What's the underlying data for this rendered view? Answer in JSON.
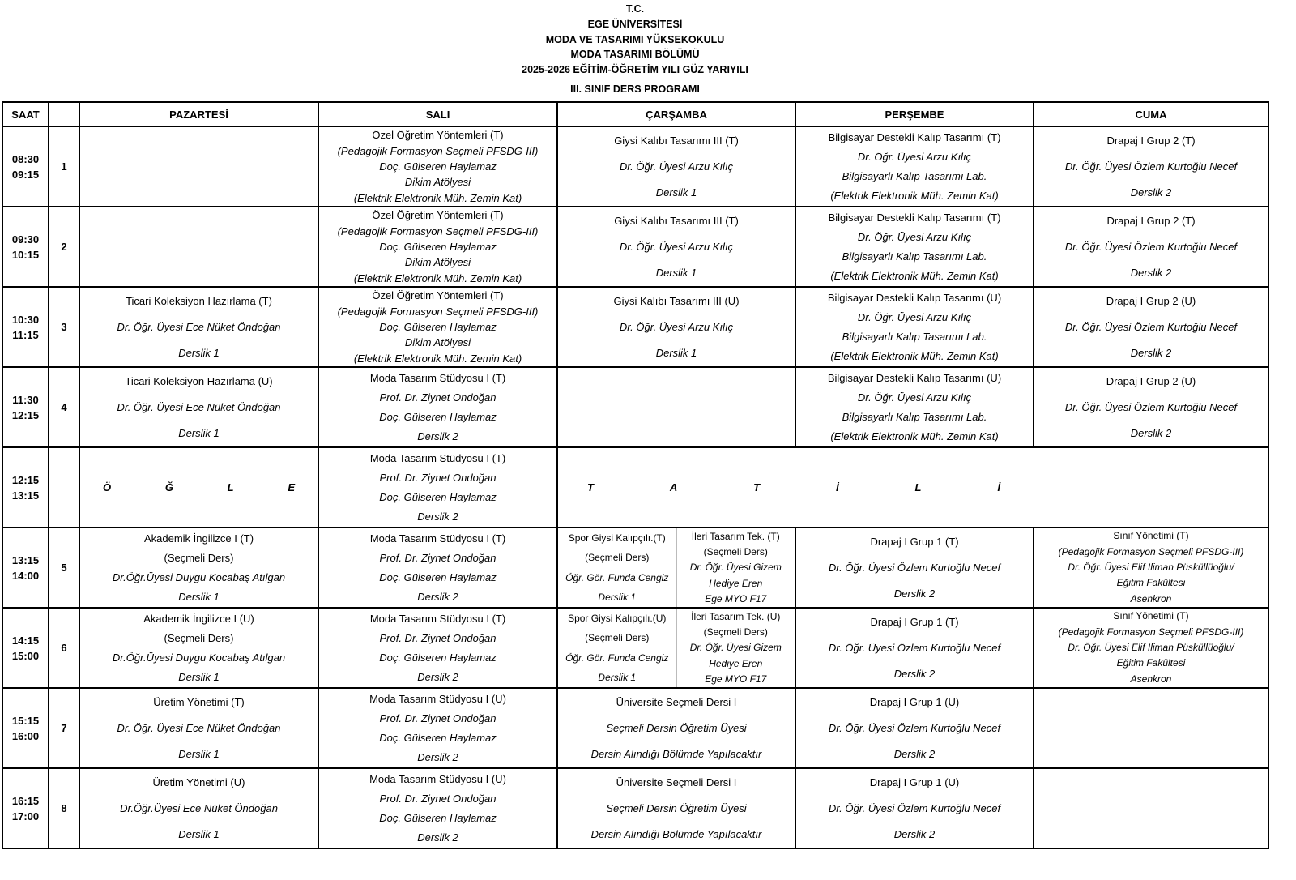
{
  "header": {
    "lines": [
      "T.C.",
      "EGE ÜNİVERSİTESİ",
      "MODA VE TASARIMI YÜKSEKOKULU",
      "MODA TASARIMI BÖLÜMÜ",
      "2025-2026 EĞİTİM-ÖĞRETİM YILI GÜZ YARIYILI"
    ],
    "program": "III. SINIF DERS PROGRAMI"
  },
  "columns": [
    "SAAT",
    "",
    "PAZARTESİ",
    "SALI",
    "ÇARŞAMBA",
    "PERŞEMBE",
    "CUMA"
  ],
  "rows": [
    {
      "time": [
        "08:30",
        "09:15"
      ],
      "num": "1",
      "cells": [
        [],
        [
          {
            "t": "Özel Öğretim Yöntemleri (T)"
          },
          {
            "t": "(Pedagojik Formasyon Seçmeli PFSDG-III)",
            "i": true
          },
          {
            "t": "Doç. Gülseren Haylamaz",
            "i": true
          },
          {
            "t": "Dikim Atölyesi",
            "i": true
          },
          {
            "t": "(Elektrik Elektronik Müh. Zemin Kat)",
            "i": true
          }
        ],
        [
          {
            "t": "Giysi Kalıbı Tasarımı III (T)"
          },
          {
            "t": "Dr. Öğr. Üyesi Arzu Kılıç",
            "i": true
          },
          {
            "t": "Derslik 1",
            "i": true
          }
        ],
        [
          {
            "t": "Bilgisayar Destekli Kalıp Tasarımı (T)"
          },
          {
            "t": "Dr. Öğr. Üyesi Arzu Kılıç",
            "i": true
          },
          {
            "t": "Bilgisayarlı Kalıp Tasarımı Lab.",
            "i": true
          },
          {
            "t": "(Elektrik Elektronik Müh. Zemin Kat)",
            "i": true
          }
        ],
        [
          {
            "t": "Drapaj I Grup 2 (T)"
          },
          {
            "t": "Dr. Öğr. Üyesi Özlem Kurtoğlu Necef",
            "i": true
          },
          {
            "t": "Derslik 2",
            "i": true
          }
        ]
      ]
    },
    {
      "time": [
        "09:30",
        "10:15"
      ],
      "num": "2",
      "cells": [
        [],
        [
          {
            "t": "Özel Öğretim Yöntemleri (T)"
          },
          {
            "t": "(Pedagojik Formasyon Seçmeli PFSDG-III)",
            "i": true
          },
          {
            "t": "Doç. Gülseren Haylamaz",
            "i": true
          },
          {
            "t": "Dikim Atölyesi",
            "i": true
          },
          {
            "t": "(Elektrik Elektronik Müh. Zemin Kat)",
            "i": true
          }
        ],
        [
          {
            "t": "Giysi Kalıbı Tasarımı III (T)"
          },
          {
            "t": "Dr. Öğr. Üyesi Arzu Kılıç",
            "i": true
          },
          {
            "t": "Derslik 1",
            "i": true
          }
        ],
        [
          {
            "t": "Bilgisayar Destekli Kalıp Tasarımı (T)"
          },
          {
            "t": "Dr. Öğr. Üyesi Arzu Kılıç",
            "i": true
          },
          {
            "t": "Bilgisayarlı Kalıp Tasarımı Lab.",
            "i": true
          },
          {
            "t": "(Elektrik Elektronik Müh. Zemin Kat)",
            "i": true
          }
        ],
        [
          {
            "t": "Drapaj I Grup 2 (T)"
          },
          {
            "t": "Dr. Öğr. Üyesi Özlem Kurtoğlu Necef",
            "i": true
          },
          {
            "t": "Derslik 2",
            "i": true
          }
        ]
      ]
    },
    {
      "time": [
        "10:30",
        "11:15"
      ],
      "num": "3",
      "cells": [
        [
          {
            "t": "Ticari Koleksiyon Hazırlama (T)"
          },
          {
            "t": "Dr. Öğr. Üyesi Ece Nüket Öndoğan",
            "i": true
          },
          {
            "t": "Derslik 1",
            "i": true
          }
        ],
        [
          {
            "t": "Özel Öğretim Yöntemleri (T)"
          },
          {
            "t": "(Pedagojik Formasyon Seçmeli PFSDG-III)",
            "i": true
          },
          {
            "t": "Doç. Gülseren Haylamaz",
            "i": true
          },
          {
            "t": "Dikim Atölyesi",
            "i": true
          },
          {
            "t": "(Elektrik Elektronik Müh. Zemin Kat)",
            "i": true
          }
        ],
        [
          {
            "t": "Giysi Kalıbı Tasarımı III (U)"
          },
          {
            "t": "Dr. Öğr. Üyesi Arzu Kılıç",
            "i": true
          },
          {
            "t": "Derslik 1",
            "i": true
          }
        ],
        [
          {
            "t": "Bilgisayar Destekli Kalıp Tasarımı (U)"
          },
          {
            "t": "Dr. Öğr. Üyesi Arzu Kılıç",
            "i": true
          },
          {
            "t": "Bilgisayarlı Kalıp Tasarımı Lab.",
            "i": true
          },
          {
            "t": "(Elektrik Elektronik Müh. Zemin Kat)",
            "i": true
          }
        ],
        [
          {
            "t": "Drapaj I Grup 2 (U)"
          },
          {
            "t": "Dr. Öğr. Üyesi Özlem Kurtoğlu Necef",
            "i": true
          },
          {
            "t": "Derslik 2",
            "i": true
          }
        ]
      ]
    },
    {
      "time": [
        "11:30",
        "12:15"
      ],
      "num": "4",
      "cells": [
        [
          {
            "t": "Ticari Koleksiyon Hazırlama (U)"
          },
          {
            "t": "Dr. Öğr. Üyesi Ece Nüket Öndoğan",
            "i": true
          },
          {
            "t": "Derslik 1",
            "i": true
          }
        ],
        [
          {
            "t": "Moda Tasarım Stüdyosu I (T)"
          },
          {
            "t": "Prof. Dr. Ziynet Ondoğan",
            "i": true
          },
          {
            "t": "Doç. Gülseren Haylamaz",
            "i": true
          },
          {
            "t": "Derslik 2",
            "i": true
          }
        ],
        [],
        [
          {
            "t": "Bilgisayar Destekli Kalıp Tasarımı (U)"
          },
          {
            "t": "Dr. Öğr. Üyesi Arzu Kılıç",
            "i": true
          },
          {
            "t": "Bilgisayarlı Kalıp Tasarımı Lab.",
            "i": true
          },
          {
            "t": "(Elektrik Elektronik Müh. Zemin Kat)",
            "i": true
          }
        ],
        [
          {
            "t": "Drapaj I Grup 2 (U)"
          },
          {
            "t": "Dr. Öğr. Üyesi Özlem Kurtoğlu Necef",
            "i": true
          },
          {
            "t": "Derslik 2",
            "i": true
          }
        ]
      ]
    },
    {
      "time": [
        "12:15",
        "13:15"
      ],
      "num": "",
      "lunch": {
        "left": [
          "Ö",
          "Ğ",
          "L",
          "E"
        ],
        "right": [
          "T",
          "A",
          "T",
          "İ",
          "L",
          "İ"
        ]
      },
      "cells": [
        [],
        [
          {
            "t": "Moda Tasarım Stüdyosu I (T)"
          },
          {
            "t": "Prof. Dr. Ziynet Ondoğan",
            "i": true
          },
          {
            "t": "Doç. Gülseren Haylamaz",
            "i": true
          },
          {
            "t": "Derslik 2",
            "i": true
          }
        ]
      ]
    },
    {
      "time": [
        "13:15",
        "14:00"
      ],
      "num": "5",
      "cells": [
        [
          {
            "t": "Akademik İngilizce I (T)"
          },
          {
            "t": "(Seçmeli Ders)"
          },
          {
            "t": "Dr.Öğr.Üyesi Duygu Kocabaş Atılgan",
            "i": true
          },
          {
            "t": "Derslik 1",
            "i": true
          }
        ],
        [
          {
            "t": "Moda Tasarım Stüdyosu I (T)"
          },
          {
            "t": "Prof. Dr. Ziynet Ondoğan",
            "i": true
          },
          {
            "t": "Doç. Gülseren Haylamaz",
            "i": true
          },
          {
            "t": "Derslik 2",
            "i": true
          }
        ],
        {
          "split": [
            [
              {
                "t": "Spor Giysi Kalıpçılı.(T)"
              },
              {
                "t": "(Seçmeli Ders)"
              },
              {
                "t": "Öğr. Gör. Funda Cengiz",
                "i": true
              },
              {
                "t": "Derslik 1",
                "i": true
              }
            ],
            [
              {
                "t": "İleri Tasarım Tek. (T)"
              },
              {
                "t": "(Seçmeli Ders)"
              },
              {
                "t": "Dr. Öğr. Üyesi Gizem",
                "i": true
              },
              {
                "t": "Hediye Eren",
                "i": true
              },
              {
                "t": "Ege MYO F17",
                "i": true
              }
            ]
          ]
        },
        [
          {
            "t": "Drapaj I Grup 1  (T)"
          },
          {
            "t": "Dr. Öğr. Üyesi Özlem Kurtoğlu Necef",
            "i": true
          },
          {
            "t": "Derslik 2",
            "i": true
          }
        ],
        {
          "small": true,
          "lines": [
            {
              "t": "Sınıf Yönetimi (T)"
            },
            {
              "t": "(Pedagojik Formasyon Seçmeli PFSDG-III)",
              "i": true
            },
            {
              "t": "Dr. Öğr. Üyesi Elif Iliman Püsküllüoğlu/",
              "i": true
            },
            {
              "t": "Eğitim Fakültesi",
              "i": true
            },
            {
              "t": "Asenkron",
              "i": true
            }
          ]
        }
      ]
    },
    {
      "time": [
        "14:15",
        "15:00"
      ],
      "num": "6",
      "cells": [
        [
          {
            "t": "Akademik İngilizce I (U)"
          },
          {
            "t": "(Seçmeli Ders)"
          },
          {
            "t": "Dr.Öğr.Üyesi Duygu Kocabaş Atılgan",
            "i": true
          },
          {
            "t": "Derslik 1",
            "i": true
          }
        ],
        [
          {
            "t": "Moda Tasarım Stüdyosu I (T)"
          },
          {
            "t": "Prof. Dr. Ziynet Ondoğan",
            "i": true
          },
          {
            "t": "Doç. Gülseren Haylamaz",
            "i": true
          },
          {
            "t": "Derslik 2",
            "i": true
          }
        ],
        {
          "split": [
            [
              {
                "t": "Spor Giysi Kalıpçılı.(U)"
              },
              {
                "t": "(Seçmeli Ders)"
              },
              {
                "t": "Öğr. Gör. Funda Cengiz",
                "i": true
              },
              {
                "t": "Derslik 1",
                "i": true
              }
            ],
            [
              {
                "t": "İleri Tasarım Tek. (U)"
              },
              {
                "t": "(Seçmeli Ders)"
              },
              {
                "t": "Dr. Öğr. Üyesi Gizem",
                "i": true
              },
              {
                "t": "Hediye Eren",
                "i": true
              },
              {
                "t": "Ege MYO F17",
                "i": true
              }
            ]
          ]
        },
        [
          {
            "t": "Drapaj I Grup 1  (T)"
          },
          {
            "t": "Dr. Öğr. Üyesi Özlem Kurtoğlu Necef",
            "i": true
          },
          {
            "t": "Derslik 2",
            "i": true
          }
        ],
        {
          "small": true,
          "lines": [
            {
              "t": "Sınıf Yönetimi (T)"
            },
            {
              "t": "(Pedagojik Formasyon Seçmeli PFSDG-III)",
              "i": true
            },
            {
              "t": "Dr. Öğr. Üyesi Elif Iliman Püsküllüoğlu/",
              "i": true
            },
            {
              "t": "Eğitim Fakültesi",
              "i": true
            },
            {
              "t": "Asenkron",
              "i": true
            }
          ]
        }
      ]
    },
    {
      "time": [
        "15:15",
        "16:00"
      ],
      "num": "7",
      "cells": [
        [
          {
            "t": "Üretim Yönetimi (T)"
          },
          {
            "t": "Dr. Öğr. Üyesi Ece Nüket Öndoğan",
            "i": true
          },
          {
            "t": "Derslik 1",
            "i": true
          }
        ],
        [
          {
            "t": "Moda Tasarım Stüdyosu I (U)"
          },
          {
            "t": "Prof. Dr. Ziynet Ondoğan",
            "i": true
          },
          {
            "t": "Doç. Gülseren Haylamaz",
            "i": true
          },
          {
            "t": "Derslik 2",
            "i": true
          }
        ],
        [
          {
            "t": "Üniversite Seçmeli Dersi I"
          },
          {
            "t": "Seçmeli Dersin Öğretim Üyesi",
            "i": true
          },
          {
            "t": "Dersin Alındığı Bölümde Yapılacaktır",
            "i": true
          }
        ],
        [
          {
            "t": "Drapaj I Grup 1  (U)"
          },
          {
            "t": "Dr. Öğr. Üyesi Özlem Kurtoğlu Necef",
            "i": true
          },
          {
            "t": "Derslik 2",
            "i": true
          }
        ],
        []
      ]
    },
    {
      "time": [
        "16:15",
        "17:00"
      ],
      "num": "8",
      "cells": [
        [
          {
            "t": "Üretim Yönetimi (U)"
          },
          {
            "t": "Dr.Öğr.Üyesi Ece Nüket Öndoğan",
            "i": true
          },
          {
            "t": "Derslik 1",
            "i": true
          }
        ],
        [
          {
            "t": "Moda Tasarım Stüdyosu I (U)"
          },
          {
            "t": "Prof. Dr. Ziynet Ondoğan",
            "i": true
          },
          {
            "t": "Doç. Gülseren Haylamaz",
            "i": true
          },
          {
            "t": "Derslik 2",
            "i": true
          }
        ],
        [
          {
            "t": "Üniversite Seçmeli Dersi I"
          },
          {
            "t": "Seçmeli Dersin Öğretim Üyesi",
            "i": true
          },
          {
            "t": "Dersin Alındığı Bölümde Yapılacaktır",
            "i": true
          }
        ],
        [
          {
            "t": "Drapaj I Grup 1  (U)"
          },
          {
            "t": "Dr. Öğr. Üyesi Özlem Kurtoğlu Necef",
            "i": true
          },
          {
            "t": "Derslik 2",
            "i": true
          }
        ],
        []
      ]
    }
  ]
}
